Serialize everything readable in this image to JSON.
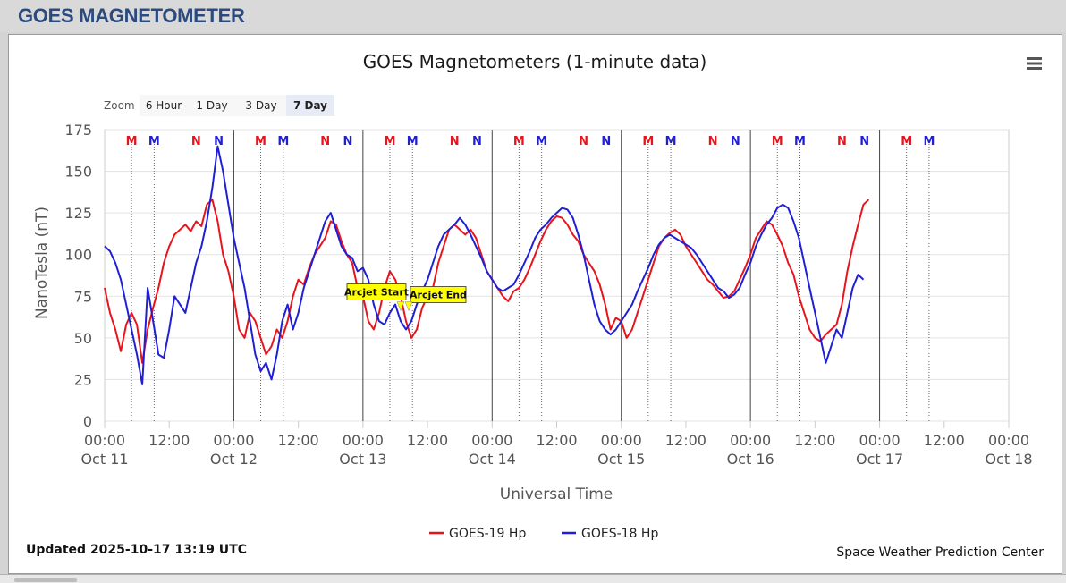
{
  "page": {
    "title": "GOES MAGNETOMETER"
  },
  "chart_data": {
    "type": "line",
    "title": "GOES Magnetometers (1-minute data)",
    "xlabel": "Universal Time",
    "ylabel": "NanoTesla (nT)",
    "ylim": [
      0,
      175
    ],
    "yticks": [
      0,
      25,
      50,
      75,
      100,
      125,
      150,
      175
    ],
    "xlim_hours": [
      0,
      168
    ],
    "xticks": [
      {
        "h": 0,
        "time": "00:00",
        "date": "Oct 11"
      },
      {
        "h": 12,
        "time": "12:00",
        "date": ""
      },
      {
        "h": 24,
        "time": "00:00",
        "date": "Oct 12"
      },
      {
        "h": 36,
        "time": "12:00",
        "date": ""
      },
      {
        "h": 48,
        "time": "00:00",
        "date": "Oct 13"
      },
      {
        "h": 60,
        "time": "12:00",
        "date": ""
      },
      {
        "h": 72,
        "time": "00:00",
        "date": "Oct 14"
      },
      {
        "h": 84,
        "time": "12:00",
        "date": ""
      },
      {
        "h": 96,
        "time": "00:00",
        "date": "Oct 15"
      },
      {
        "h": 108,
        "time": "12:00",
        "date": ""
      },
      {
        "h": 120,
        "time": "00:00",
        "date": "Oct 16"
      },
      {
        "h": 132,
        "time": "12:00",
        "date": ""
      },
      {
        "h": 144,
        "time": "00:00",
        "date": "Oct 17"
      },
      {
        "h": 156,
        "time": "12:00",
        "date": ""
      },
      {
        "h": 168,
        "time": "00:00",
        "date": "Oct 18"
      }
    ],
    "zoom": {
      "label": "Zoom",
      "buttons": [
        "6 Hour",
        "1 Day",
        "3 Day",
        "7 Day"
      ],
      "selected": "7 Day"
    },
    "day_lines_hours": [
      24,
      48,
      72,
      96,
      120,
      144
    ],
    "markers": {
      "goes19": {
        "color": "#e8141c",
        "midnight_h": [
          5,
          29,
          53,
          77,
          101,
          125,
          149
        ],
        "noon_h": [
          17,
          41,
          65,
          89,
          113,
          137
        ]
      },
      "goes18": {
        "color": "#1f1fd6",
        "midnight_h": [
          9.2,
          33.2,
          57.2,
          81.2,
          105.2,
          129.2,
          153.2
        ],
        "noon_h": [
          21.2,
          45.2,
          69.2,
          93.2,
          117.2,
          141.2
        ]
      },
      "midnight_label": "M",
      "noon_label": "N"
    },
    "series": [
      {
        "name": "GOES-19 Hp",
        "color": "#e8141c",
        "points": [
          [
            0,
            80
          ],
          [
            1,
            65
          ],
          [
            2,
            55
          ],
          [
            3,
            42
          ],
          [
            4,
            58
          ],
          [
            5,
            65
          ],
          [
            6,
            58
          ],
          [
            7,
            35
          ],
          [
            8,
            55
          ],
          [
            9,
            68
          ],
          [
            10,
            80
          ],
          [
            11,
            95
          ],
          [
            12,
            105
          ],
          [
            13,
            112
          ],
          [
            14,
            115
          ],
          [
            15,
            118
          ],
          [
            16,
            114
          ],
          [
            17,
            120
          ],
          [
            18,
            117
          ],
          [
            19,
            130
          ],
          [
            20,
            133
          ],
          [
            21,
            120
          ],
          [
            22,
            100
          ],
          [
            23,
            90
          ],
          [
            24,
            75
          ],
          [
            25,
            55
          ],
          [
            26,
            50
          ],
          [
            27,
            65
          ],
          [
            28,
            60
          ],
          [
            29,
            50
          ],
          [
            30,
            40
          ],
          [
            31,
            45
          ],
          [
            32,
            55
          ],
          [
            33,
            50
          ],
          [
            34,
            60
          ],
          [
            35,
            75
          ],
          [
            36,
            85
          ],
          [
            37,
            82
          ],
          [
            38,
            92
          ],
          [
            39,
            100
          ],
          [
            40,
            105
          ],
          [
            41,
            110
          ],
          [
            42,
            120
          ],
          [
            43,
            118
          ],
          [
            44,
            108
          ],
          [
            45,
            100
          ],
          [
            46,
            95
          ],
          [
            47,
            80
          ],
          [
            48,
            75
          ],
          [
            49,
            60
          ],
          [
            50,
            55
          ],
          [
            51,
            65
          ],
          [
            52,
            80
          ],
          [
            53,
            90
          ],
          [
            54,
            85
          ],
          [
            55,
            75
          ],
          [
            56,
            60
          ],
          [
            57,
            50
          ],
          [
            58,
            55
          ],
          [
            59,
            68
          ],
          [
            60,
            75
          ],
          [
            61,
            80
          ],
          [
            62,
            95
          ],
          [
            63,
            105
          ],
          [
            64,
            115
          ],
          [
            65,
            118
          ],
          [
            66,
            115
          ],
          [
            67,
            112
          ],
          [
            68,
            115
          ],
          [
            69,
            110
          ],
          [
            70,
            100
          ],
          [
            71,
            90
          ],
          [
            72,
            85
          ],
          [
            73,
            80
          ],
          [
            74,
            75
          ],
          [
            75,
            72
          ],
          [
            76,
            78
          ],
          [
            77,
            80
          ],
          [
            78,
            85
          ],
          [
            79,
            92
          ],
          [
            80,
            100
          ],
          [
            81,
            108
          ],
          [
            82,
            115
          ],
          [
            83,
            120
          ],
          [
            84,
            123
          ],
          [
            85,
            122
          ],
          [
            86,
            118
          ],
          [
            87,
            112
          ],
          [
            88,
            108
          ],
          [
            89,
            100
          ],
          [
            90,
            95
          ],
          [
            91,
            90
          ],
          [
            92,
            82
          ],
          [
            93,
            70
          ],
          [
            94,
            55
          ],
          [
            95,
            62
          ],
          [
            96,
            60
          ],
          [
            97,
            50
          ],
          [
            98,
            55
          ],
          [
            99,
            65
          ],
          [
            100,
            75
          ],
          [
            101,
            85
          ],
          [
            102,
            95
          ],
          [
            103,
            105
          ],
          [
            104,
            110
          ],
          [
            105,
            113
          ],
          [
            106,
            115
          ],
          [
            107,
            112
          ],
          [
            108,
            105
          ],
          [
            109,
            100
          ],
          [
            110,
            95
          ],
          [
            111,
            90
          ],
          [
            112,
            85
          ],
          [
            113,
            82
          ],
          [
            114,
            78
          ],
          [
            115,
            74
          ],
          [
            116,
            75
          ],
          [
            117,
            78
          ],
          [
            118,
            85
          ],
          [
            119,
            92
          ],
          [
            120,
            100
          ],
          [
            121,
            110
          ],
          [
            122,
            115
          ],
          [
            123,
            120
          ],
          [
            124,
            118
          ],
          [
            125,
            112
          ],
          [
            126,
            105
          ],
          [
            127,
            95
          ],
          [
            128,
            88
          ],
          [
            129,
            75
          ],
          [
            130,
            65
          ],
          [
            131,
            55
          ],
          [
            132,
            50
          ],
          [
            133,
            48
          ],
          [
            134,
            52
          ],
          [
            135,
            55
          ],
          [
            136,
            58
          ],
          [
            137,
            70
          ],
          [
            138,
            90
          ],
          [
            139,
            105
          ],
          [
            140,
            118
          ],
          [
            141,
            130
          ],
          [
            142,
            133
          ]
        ]
      },
      {
        "name": "GOES-18 Hp",
        "color": "#1f1fd6",
        "points": [
          [
            0,
            105
          ],
          [
            1,
            102
          ],
          [
            2,
            95
          ],
          [
            3,
            85
          ],
          [
            4,
            70
          ],
          [
            5,
            55
          ],
          [
            6,
            40
          ],
          [
            7,
            22
          ],
          [
            8,
            80
          ],
          [
            9,
            60
          ],
          [
            10,
            40
          ],
          [
            11,
            38
          ],
          [
            12,
            55
          ],
          [
            13,
            75
          ],
          [
            14,
            70
          ],
          [
            15,
            65
          ],
          [
            16,
            80
          ],
          [
            17,
            95
          ],
          [
            18,
            105
          ],
          [
            19,
            120
          ],
          [
            20,
            140
          ],
          [
            21,
            165
          ],
          [
            22,
            150
          ],
          [
            23,
            130
          ],
          [
            24,
            110
          ],
          [
            25,
            95
          ],
          [
            26,
            80
          ],
          [
            27,
            60
          ],
          [
            28,
            40
          ],
          [
            29,
            30
          ],
          [
            30,
            35
          ],
          [
            31,
            25
          ],
          [
            32,
            40
          ],
          [
            33,
            60
          ],
          [
            34,
            70
          ],
          [
            35,
            55
          ],
          [
            36,
            65
          ],
          [
            37,
            80
          ],
          [
            38,
            90
          ],
          [
            39,
            100
          ],
          [
            40,
            110
          ],
          [
            41,
            120
          ],
          [
            42,
            125
          ],
          [
            43,
            115
          ],
          [
            44,
            105
          ],
          [
            45,
            100
          ],
          [
            46,
            98
          ],
          [
            47,
            90
          ],
          [
            48,
            92
          ],
          [
            49,
            85
          ],
          [
            50,
            70
          ],
          [
            51,
            60
          ],
          [
            52,
            58
          ],
          [
            53,
            65
          ],
          [
            54,
            70
          ],
          [
            55,
            60
          ],
          [
            56,
            55
          ],
          [
            57,
            60
          ],
          [
            58,
            70
          ],
          [
            59,
            78
          ],
          [
            60,
            85
          ],
          [
            61,
            95
          ],
          [
            62,
            105
          ],
          [
            63,
            112
          ],
          [
            64,
            115
          ],
          [
            65,
            118
          ],
          [
            66,
            122
          ],
          [
            67,
            118
          ],
          [
            68,
            112
          ],
          [
            69,
            105
          ],
          [
            70,
            98
          ],
          [
            71,
            90
          ],
          [
            72,
            85
          ],
          [
            73,
            80
          ],
          [
            74,
            78
          ],
          [
            75,
            80
          ],
          [
            76,
            82
          ],
          [
            77,
            88
          ],
          [
            78,
            95
          ],
          [
            79,
            102
          ],
          [
            80,
            110
          ],
          [
            81,
            115
          ],
          [
            82,
            118
          ],
          [
            83,
            122
          ],
          [
            84,
            125
          ],
          [
            85,
            128
          ],
          [
            86,
            127
          ],
          [
            87,
            122
          ],
          [
            88,
            112
          ],
          [
            89,
            100
          ],
          [
            90,
            85
          ],
          [
            91,
            70
          ],
          [
            92,
            60
          ],
          [
            93,
            55
          ],
          [
            94,
            52
          ],
          [
            95,
            55
          ],
          [
            96,
            60
          ],
          [
            97,
            65
          ],
          [
            98,
            70
          ],
          [
            99,
            78
          ],
          [
            100,
            85
          ],
          [
            101,
            92
          ],
          [
            102,
            100
          ],
          [
            103,
            106
          ],
          [
            104,
            110
          ],
          [
            105,
            112
          ],
          [
            106,
            110
          ],
          [
            107,
            108
          ],
          [
            108,
            106
          ],
          [
            109,
            104
          ],
          [
            110,
            100
          ],
          [
            111,
            95
          ],
          [
            112,
            90
          ],
          [
            113,
            85
          ],
          [
            114,
            80
          ],
          [
            115,
            78
          ],
          [
            116,
            74
          ],
          [
            117,
            76
          ],
          [
            118,
            80
          ],
          [
            119,
            88
          ],
          [
            120,
            95
          ],
          [
            121,
            105
          ],
          [
            122,
            112
          ],
          [
            123,
            118
          ],
          [
            124,
            122
          ],
          [
            125,
            128
          ],
          [
            126,
            130
          ],
          [
            127,
            128
          ],
          [
            128,
            120
          ],
          [
            129,
            110
          ],
          [
            130,
            95
          ],
          [
            131,
            80
          ],
          [
            132,
            65
          ],
          [
            133,
            50
          ],
          [
            134,
            35
          ],
          [
            135,
            45
          ],
          [
            136,
            55
          ],
          [
            137,
            50
          ],
          [
            138,
            65
          ],
          [
            139,
            80
          ],
          [
            140,
            88
          ],
          [
            141,
            85
          ]
        ]
      }
    ],
    "annotations": [
      {
        "text": "Arcjet Start",
        "h": 55,
        "y": 62
      },
      {
        "text": "Arcjet End",
        "h": 56.5,
        "y": 62
      }
    ],
    "legend": {
      "position": "bottom-center"
    },
    "credits": {
      "updated": "Updated 2025-10-17 13:19 UTC",
      "source": "Space Weather Prediction Center"
    },
    "grid": true
  }
}
